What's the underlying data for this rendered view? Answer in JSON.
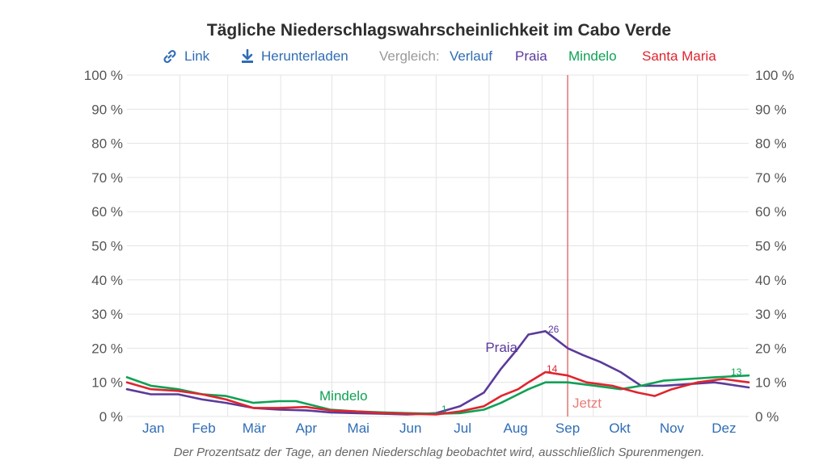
{
  "title": "Tägliche Niederschlagswahrscheinlichkeit im Cabo Verde",
  "toolbar": {
    "link_label": "Link",
    "download_label": "Herunterladen",
    "compare_label": "Vergleich:",
    "compare_options": [
      "Verlauf",
      "Praia",
      "Mindelo",
      "Santa Maria"
    ]
  },
  "footnote": "Der Prozentsatz der Tage, an denen Niederschlag beobachtet wird, ausschließlich Spurenmengen.",
  "now_label": "Jetzt",
  "icons": {
    "link": "link-icon",
    "download": "download-icon"
  },
  "colors": {
    "praia": "#5b3a9a",
    "mindelo": "#0fa155",
    "santa_maria": "#e0242e",
    "now": "#d9534f",
    "link": "#2f6db5"
  },
  "chart_data": {
    "type": "line",
    "title": "Tägliche Niederschlagswahrscheinlichkeit im Cabo Verde",
    "xlabel": "",
    "ylabel": "",
    "x_unit": "day of year",
    "xlim": [
      1,
      365
    ],
    "ylim": [
      0,
      100
    ],
    "y_ticks": [
      "0 %",
      "10 %",
      "20 %",
      "30 %",
      "40 %",
      "50 %",
      "60 %",
      "70 %",
      "80 %",
      "90 %",
      "100 %"
    ],
    "month_labels": [
      "Jan",
      "Feb",
      "Mär",
      "Apr",
      "Mai",
      "Jun",
      "Jul",
      "Aug",
      "Sep",
      "Okt",
      "Nov",
      "Dez"
    ],
    "now_day": 259,
    "grid": true,
    "series": [
      {
        "name": "Praia",
        "x": [
          1,
          15,
          31,
          45,
          59,
          75,
          90,
          106,
          120,
          135,
          151,
          165,
          182,
          196,
          210,
          220,
          230,
          236,
          246,
          259,
          268,
          278,
          290,
          302,
          315,
          330,
          345,
          365
        ],
        "y": [
          8,
          6.5,
          6.5,
          5,
          4,
          2.5,
          2,
          1.8,
          1.2,
          1.0,
          0.8,
          0.6,
          1,
          3,
          7,
          14,
          20,
          24,
          25,
          20,
          18,
          16,
          13,
          9,
          9,
          9.5,
          10,
          8.5
        ],
        "peak_label": "26",
        "series_label": "Praia"
      },
      {
        "name": "Mindelo",
        "x": [
          1,
          15,
          31,
          45,
          59,
          75,
          90,
          100,
          120,
          135,
          151,
          165,
          182,
          196,
          210,
          220,
          236,
          246,
          259,
          275,
          290,
          302,
          315,
          330,
          345,
          365
        ],
        "y": [
          11.5,
          9,
          8,
          6.5,
          6,
          4,
          4.5,
          4.5,
          2,
          1.5,
          1.2,
          1,
          0.8,
          1,
          2,
          4,
          8,
          10,
          10,
          9,
          8,
          9,
          10.5,
          11,
          11.5,
          12
        ],
        "peak_label": "13",
        "min_label": "1",
        "series_label": "Mindelo"
      },
      {
        "name": "Santa Maria",
        "x": [
          1,
          15,
          31,
          45,
          59,
          75,
          90,
          106,
          120,
          135,
          151,
          165,
          182,
          196,
          210,
          220,
          230,
          236,
          246,
          259,
          270,
          285,
          300,
          310,
          320,
          335,
          350,
          365
        ],
        "y": [
          10,
          8,
          7.5,
          6.5,
          5,
          2.5,
          2.5,
          2.8,
          1.8,
          1.5,
          1.0,
          0.8,
          0.6,
          1.5,
          3,
          6,
          8,
          10,
          13,
          12,
          10,
          9,
          7,
          6,
          8,
          10,
          11,
          10
        ],
        "peak_label": "14"
      }
    ]
  }
}
